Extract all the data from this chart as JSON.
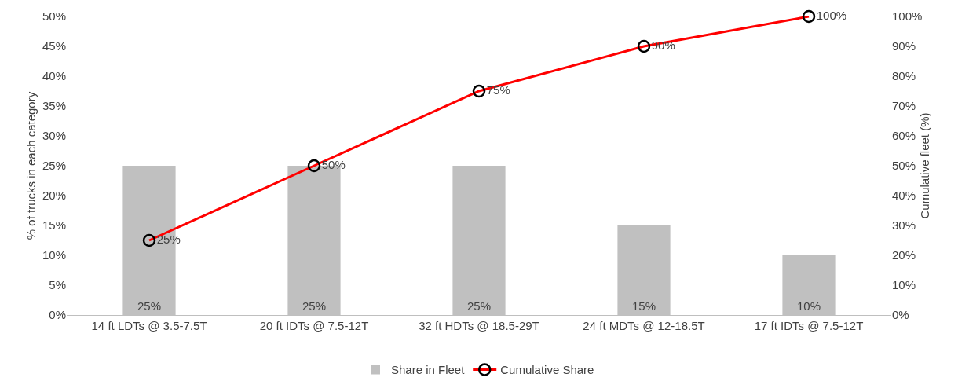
{
  "chart_data": {
    "type": "bar",
    "categories": [
      "14 ft LDTs @ 3.5-7.5T",
      "20 ft IDTs @ 7.5-12T",
      "32 ft HDTs @ 18.5-29T",
      "24 ft MDTs @ 12-18.5T",
      "17 ft IDTs @ 7.5-12T"
    ],
    "series": [
      {
        "name": "Share in Fleet",
        "color": "#c0c0c0",
        "values": [
          25,
          25,
          25,
          15,
          10
        ],
        "value_labels": [
          "25%",
          "25%",
          "25%",
          "15%",
          "10%"
        ]
      },
      {
        "name": "Cumulative Share",
        "type": "line",
        "axis": "y2",
        "color": "#ff0000",
        "marker": "circle",
        "values": [
          25,
          50,
          75,
          90,
          100
        ],
        "value_labels": [
          "25%",
          "50%",
          "75%",
          "90%",
          "100%"
        ]
      }
    ],
    "ylabel": "% of trucks in each category",
    "y2label": "Cumulative fleet (%)",
    "ylim": [
      0,
      50
    ],
    "yticks": [
      {
        "value": 0,
        "label": "0%"
      },
      {
        "value": 5,
        "label": "5%"
      },
      {
        "value": 10,
        "label": "10%"
      },
      {
        "value": 15,
        "label": "15%"
      },
      {
        "value": 20,
        "label": "20%"
      },
      {
        "value": 25,
        "label": "25%"
      },
      {
        "value": 30,
        "label": "30%"
      },
      {
        "value": 35,
        "label": "35%"
      },
      {
        "value": 40,
        "label": "40%"
      },
      {
        "value": 45,
        "label": "45%"
      },
      {
        "value": 50,
        "label": "50%"
      }
    ],
    "y2lim": [
      0,
      100
    ],
    "y2ticks": [
      {
        "value": 0,
        "label": "0%"
      },
      {
        "value": 10,
        "label": "10%"
      },
      {
        "value": 20,
        "label": "20%"
      },
      {
        "value": 30,
        "label": "30%"
      },
      {
        "value": 40,
        "label": "40%"
      },
      {
        "value": 50,
        "label": "50%"
      },
      {
        "value": 60,
        "label": "60%"
      },
      {
        "value": 70,
        "label": "70%"
      },
      {
        "value": 80,
        "label": "80%"
      },
      {
        "value": 90,
        "label": "90%"
      },
      {
        "value": 100,
        "label": "100%"
      }
    ],
    "grid": false,
    "legend": "bottom"
  }
}
